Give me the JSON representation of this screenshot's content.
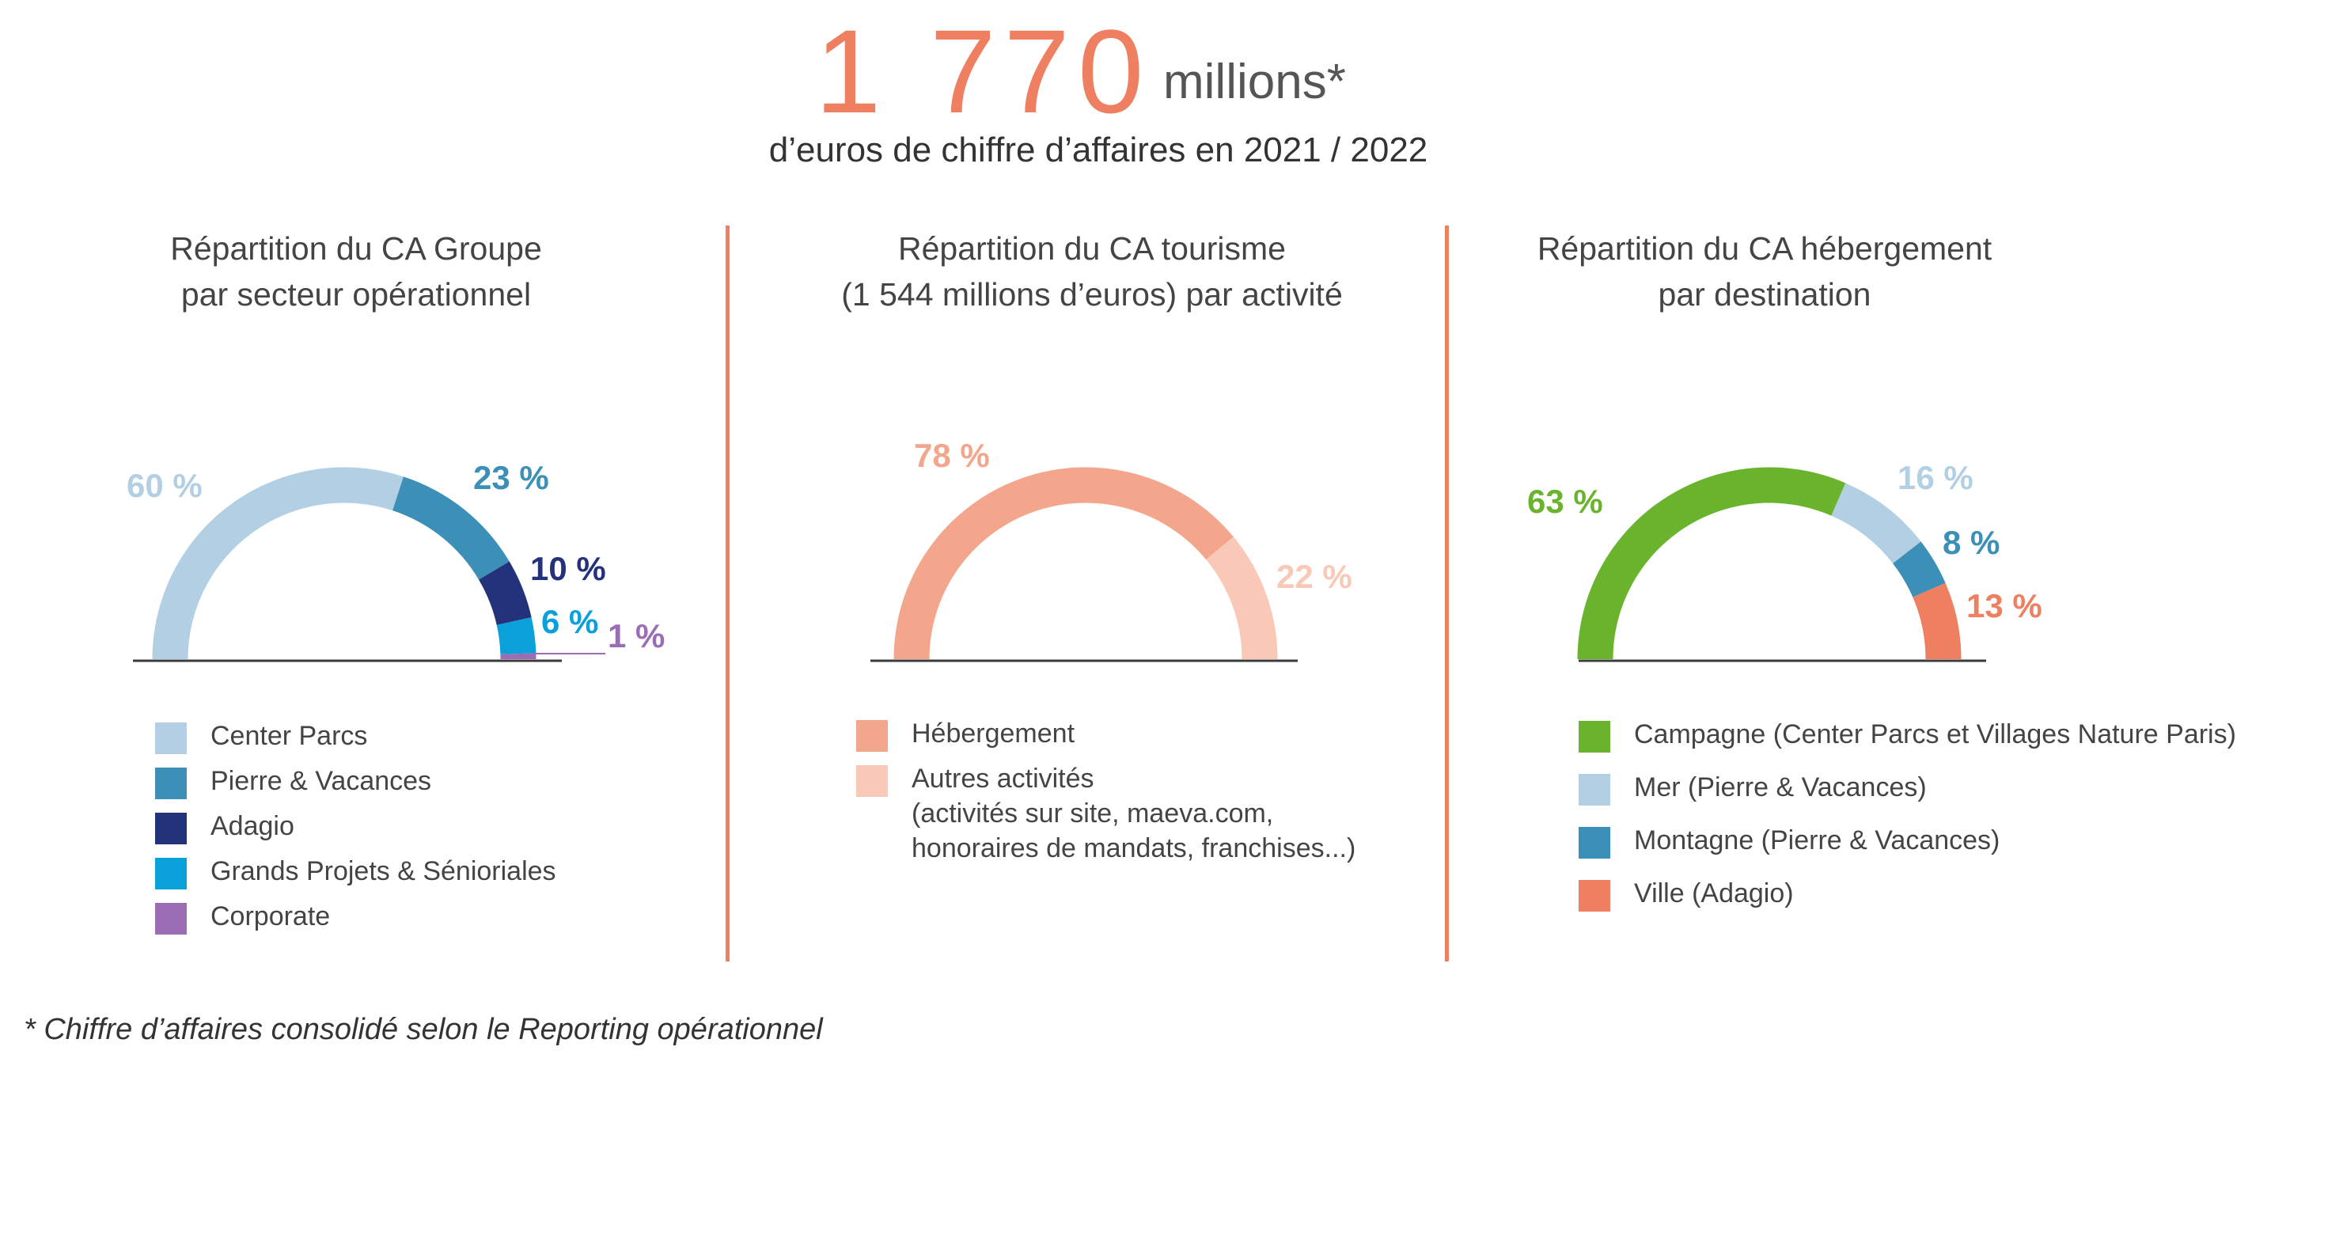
{
  "header": {
    "big_number": "1 770",
    "big_unit": "millions*",
    "subtitle": "d’euros de chiffre d’affaires en 2021 / 2022"
  },
  "footnote": "* Chiffre d’affaires consolidé selon le Reporting opérationnel",
  "colors": {
    "accent": "#ee7f61",
    "divider": "#ee7f61",
    "baseline": "#3b3b3b"
  },
  "chart_data": [
    {
      "type": "pie",
      "style": "semi-donut",
      "title": [
        "Répartition du CA Groupe",
        "par secteur opérationnel"
      ],
      "series": [
        {
          "name": "Center Parcs",
          "value": 60,
          "label": "60 %",
          "color": "#b3cfe3"
        },
        {
          "name": "Pierre & Vacances",
          "value": 23,
          "label": "23 %",
          "color": "#3c8fb6"
        },
        {
          "name": "Adagio",
          "value": 10,
          "label": "10 %",
          "color": "#23327a"
        },
        {
          "name": "Grands Projets & Sénioriales",
          "value": 6,
          "label": "6 %",
          "color": "#0aa0d9"
        },
        {
          "name": "Corporate",
          "value": 1,
          "label": "1 %",
          "color": "#9b6db5"
        }
      ]
    },
    {
      "type": "pie",
      "style": "semi-donut",
      "title": [
        "Répartition du CA tourisme",
        "(1 544 millions d’euros) par activité"
      ],
      "series": [
        {
          "name": "Hébergement",
          "value": 78,
          "label": "78 %",
          "color": "#f4a68c"
        },
        {
          "name": "Autres activités",
          "value": 22,
          "label": "22 %",
          "color": "#f9c8b6",
          "legend_lines": [
            "Autres activités",
            "(activités sur site, maeva.com,",
            "honoraires de mandats, franchises...)"
          ]
        }
      ]
    },
    {
      "type": "pie",
      "style": "semi-donut",
      "title": [
        "Répartition du CA hébergement",
        "par destination"
      ],
      "series": [
        {
          "name": "Campagne (Center Parcs et Villages Nature Paris)",
          "value": 63,
          "label": "63 %",
          "color": "#6ab42d"
        },
        {
          "name": "Mer (Pierre & Vacances)",
          "value": 16,
          "label": "16 %",
          "color": "#b3cfe3"
        },
        {
          "name": "Montagne (Pierre & Vacances)",
          "value": 8,
          "label": "8 %",
          "color": "#3c8fb6"
        },
        {
          "name": "Ville (Adagio)",
          "value": 13,
          "label": "13 %",
          "color": "#ee7f61"
        }
      ]
    }
  ]
}
